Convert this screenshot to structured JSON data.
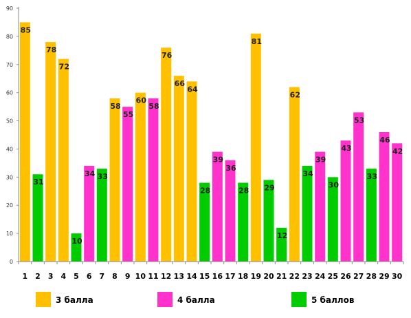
{
  "chart_data": {
    "type": "bar",
    "categories": [
      "1",
      "2",
      "3",
      "4",
      "5",
      "6",
      "7",
      "8",
      "9",
      "10",
      "11",
      "12",
      "13",
      "14",
      "15",
      "16",
      "17",
      "18",
      "19",
      "20",
      "21",
      "22",
      "23",
      "24",
      "25",
      "26",
      "27",
      "28",
      "29",
      "30"
    ],
    "values": [
      85,
      31,
      78,
      72,
      10,
      34,
      33,
      58,
      55,
      60,
      58,
      76,
      66,
      64,
      28,
      39,
      36,
      28,
      81,
      29,
      12,
      62,
      34,
      39,
      30,
      43,
      53,
      33,
      46,
      42
    ],
    "bar_groups": [
      "3 балла",
      "5 баллов",
      "3 балла",
      "3 балла",
      "5 баллов",
      "4 балла",
      "5 баллов",
      "3 балла",
      "4 балла",
      "3 балла",
      "4 балла",
      "3 балла",
      "3 балла",
      "3 балла",
      "5 баллов",
      "4 балла",
      "4 балла",
      "5 баллов",
      "3 балла",
      "5 баллов",
      "5 баллов",
      "3 балла",
      "5 баллов",
      "4 балла",
      "5 баллов",
      "4 балла",
      "4 балла",
      "5 баллов",
      "4 балла",
      "4 балла"
    ],
    "ylim": [
      0,
      90
    ],
    "yticks": [
      0,
      10,
      20,
      30,
      40,
      50,
      60,
      70,
      80,
      90
    ],
    "grid": false,
    "title": "",
    "xlabel": "",
    "ylabel": "",
    "legend_placement": "bottom",
    "legend": [
      {
        "name": "3 балла",
        "color": "#FFC000"
      },
      {
        "name": "4 балла",
        "color": "#FF33CC"
      },
      {
        "name": "5 баллов",
        "color": "#00CC00"
      }
    ]
  },
  "colors": {
    "3 балла": "#FFC000",
    "4 балла": "#FF33CC",
    "5 баллов": "#00CC00",
    "axis": "#888888"
  }
}
